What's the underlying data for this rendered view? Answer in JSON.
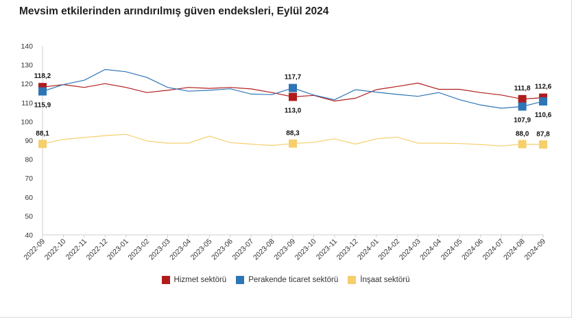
{
  "title": "Mevsim etkilerinden arındırılmış güven endeksleri, Eylül 2024",
  "chart_data": {
    "type": "line",
    "title": "Mevsim etkilerinden arındırılmış güven endeksleri, Eylül 2024",
    "xlabel": "",
    "ylabel": "",
    "ylim": [
      40,
      140
    ],
    "yticks": [
      40,
      50,
      60,
      70,
      80,
      90,
      100,
      110,
      120,
      130,
      140
    ],
    "grid": false,
    "legend_position": "bottom",
    "categories": [
      "2022-09",
      "2022-10",
      "2022-11",
      "2022-12",
      "2023-01",
      "2023-02",
      "2023-03",
      "2023-04",
      "2023-05",
      "2023-06",
      "2023-07",
      "2023-08",
      "2023-09",
      "2023-10",
      "2023-11",
      "2023-12",
      "2024-01",
      "2024-02",
      "2024-03",
      "2024-04",
      "2024-05",
      "2024-06",
      "2024-07",
      "2024-08",
      "2024-09"
    ],
    "series": [
      {
        "name": "Hizmet sektörü",
        "color": "#b01c1c",
        "values": [
          118.2,
          119.5,
          118.0,
          120.0,
          118.0,
          115.3,
          116.5,
          118.0,
          117.5,
          118.0,
          117.2,
          115.3,
          113.0,
          113.8,
          110.8,
          112.3,
          116.8,
          118.5,
          120.3,
          117.0,
          117.0,
          115.3,
          114.0,
          111.8,
          112.6
        ],
        "markers": [
          {
            "index": 0,
            "label": "118,2"
          },
          {
            "index": 12,
            "label": "113,0"
          },
          {
            "index": 23,
            "label": "111,8"
          },
          {
            "index": 24,
            "label": "112,6"
          }
        ]
      },
      {
        "name": "Perakende ticaret sektörü",
        "color": "#2e75b6",
        "values": [
          115.9,
          119.5,
          121.8,
          127.5,
          126.3,
          123.3,
          118.0,
          116.0,
          116.5,
          117.3,
          114.5,
          114.2,
          117.7,
          114.0,
          111.5,
          116.8,
          115.5,
          114.3,
          113.3,
          115.3,
          111.5,
          108.7,
          107.0,
          107.9,
          110.6
        ],
        "markers": [
          {
            "index": 0,
            "label": "115,9"
          },
          {
            "index": 12,
            "label": "117,7"
          },
          {
            "index": 23,
            "label": "107,9"
          },
          {
            "index": 24,
            "label": "110,6"
          }
        ]
      },
      {
        "name": "İnşaat sektörü",
        "color": "#f5cf6b",
        "values": [
          88.1,
          90.5,
          91.5,
          92.5,
          93.2,
          89.7,
          88.5,
          88.5,
          92.2,
          88.8,
          88.0,
          87.3,
          88.3,
          89.0,
          90.8,
          88.0,
          90.8,
          91.7,
          88.5,
          88.5,
          88.3,
          87.8,
          87.0,
          88.0,
          87.8
        ],
        "markers": [
          {
            "index": 0,
            "label": "88,1"
          },
          {
            "index": 12,
            "label": "88,3"
          },
          {
            "index": 23,
            "label": "88,0"
          },
          {
            "index": 24,
            "label": "87,8"
          }
        ]
      }
    ]
  }
}
